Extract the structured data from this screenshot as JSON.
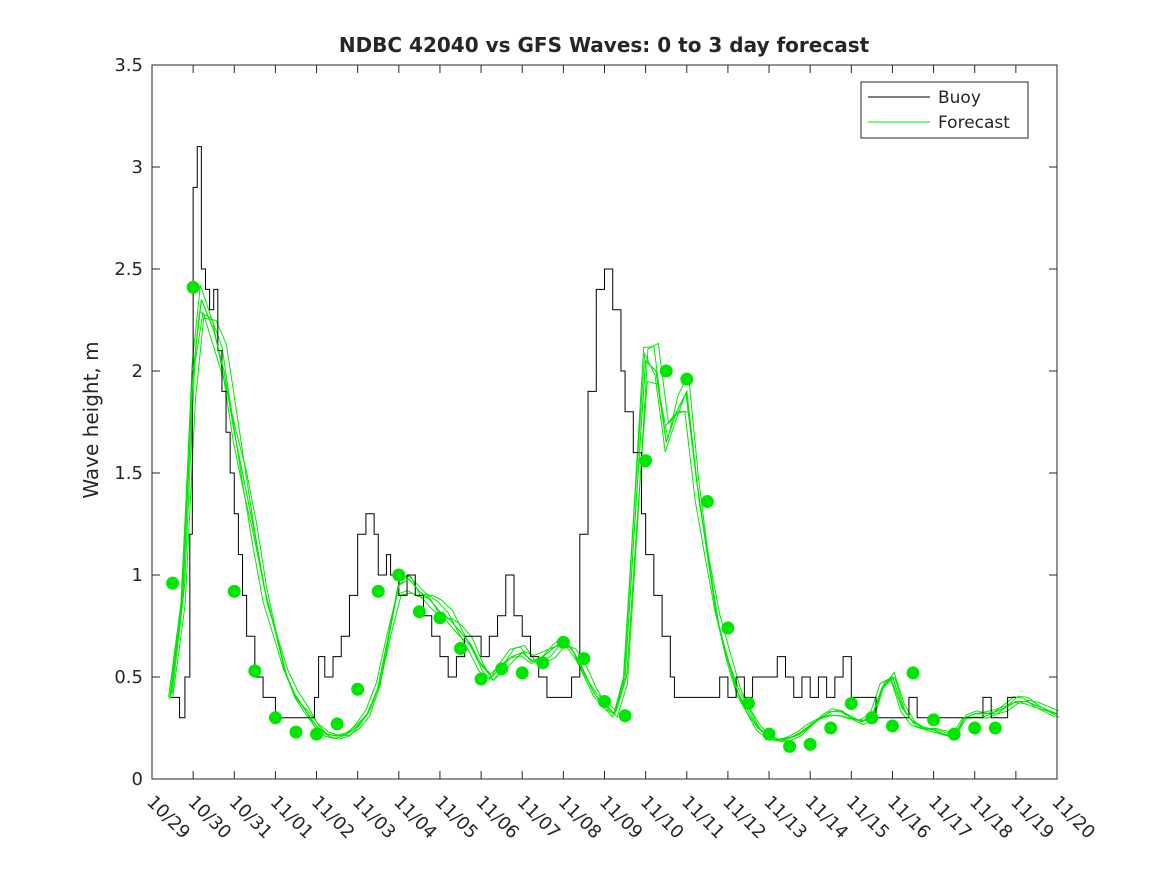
{
  "chart_data": {
    "type": "line",
    "title": "NDBC 42040 vs GFS Waves: 0 to 3 day forecast",
    "xlabel": "",
    "ylabel": "Wave height, m",
    "xlim": [
      0,
      22
    ],
    "ylim": [
      0,
      3.5
    ],
    "yticks": [
      0,
      0.5,
      1,
      1.5,
      2,
      2.5,
      3,
      3.5
    ],
    "ytick_labels": [
      "0",
      "0.5",
      "1",
      "1.5",
      "2",
      "2.5",
      "3",
      "3.5"
    ],
    "xticks": [
      0,
      1,
      2,
      3,
      4,
      5,
      6,
      7,
      8,
      9,
      10,
      11,
      12,
      13,
      14,
      15,
      16,
      17,
      18,
      19,
      20,
      21,
      22
    ],
    "xtick_labels": [
      "10/29",
      "10/30",
      "10/31",
      "11/01",
      "11/02",
      "11/03",
      "11/04",
      "11/05",
      "11/06",
      "11/07",
      "11/08",
      "11/09",
      "11/10",
      "11/11",
      "11/12",
      "11/13",
      "11/14",
      "11/15",
      "11/16",
      "11/17",
      "11/18",
      "11/19",
      "11/20"
    ],
    "legend": {
      "position": "top-right",
      "entries": [
        {
          "label": "Buoy",
          "color": "#000000"
        },
        {
          "label": "Forecast",
          "color": "#00e600"
        }
      ]
    },
    "series": [
      {
        "name": "Buoy",
        "color": "#000000",
        "x": [
          0.45,
          0.62,
          0.67,
          0.8,
          0.92,
          0.98,
          1.0,
          1.1,
          1.2,
          1.3,
          1.4,
          1.5,
          1.6,
          1.7,
          1.8,
          1.9,
          2.0,
          2.1,
          2.2,
          2.3,
          2.5,
          2.7,
          3.0,
          3.2,
          3.4,
          3.6,
          3.8,
          3.95,
          4.05,
          4.2,
          4.4,
          4.6,
          4.8,
          5.0,
          5.2,
          5.4,
          5.5,
          5.7,
          5.8,
          6.0,
          6.2,
          6.4,
          6.6,
          6.8,
          7.0,
          7.2,
          7.4,
          7.6,
          7.8,
          8.0,
          8.2,
          8.4,
          8.6,
          8.8,
          9.0,
          9.2,
          9.4,
          9.6,
          9.8,
          10.0,
          10.2,
          10.4,
          10.6,
          10.8,
          11.0,
          11.2,
          11.4,
          11.5,
          11.7,
          11.9,
          12.0,
          12.2,
          12.4,
          12.6,
          12.7,
          12.9,
          13.0,
          13.1,
          13.3,
          13.45,
          13.6,
          13.8,
          14.0,
          14.2,
          14.4,
          14.6,
          14.8,
          15.0,
          15.2,
          15.4,
          15.6,
          15.8,
          16.0,
          16.2,
          16.4,
          16.6,
          16.8,
          17.0,
          17.2,
          17.4,
          17.6,
          17.8,
          18.0,
          18.2,
          18.4,
          18.6,
          18.8,
          19.0,
          19.2,
          19.4,
          19.6,
          19.8,
          20.0,
          20.2,
          20.4,
          20.6,
          20.8,
          21.0
        ],
        "y": [
          0.4,
          0.4,
          0.3,
          0.5,
          1.2,
          2.0,
          2.9,
          3.1,
          2.5,
          2.4,
          2.3,
          2.4,
          2.1,
          1.9,
          1.7,
          1.5,
          1.3,
          1.1,
          0.9,
          0.7,
          0.5,
          0.4,
          0.3,
          0.3,
          0.3,
          0.3,
          0.3,
          0.4,
          0.6,
          0.5,
          0.6,
          0.7,
          0.9,
          1.2,
          1.3,
          1.2,
          1.0,
          1.1,
          1.0,
          0.9,
          1.0,
          0.9,
          0.8,
          0.7,
          0.6,
          0.5,
          0.6,
          0.7,
          0.7,
          0.6,
          0.7,
          0.8,
          1.0,
          0.8,
          0.7,
          0.6,
          0.5,
          0.4,
          0.4,
          0.4,
          0.5,
          1.2,
          1.9,
          2.4,
          2.5,
          2.3,
          2.0,
          1.8,
          1.6,
          1.3,
          1.1,
          0.9,
          0.7,
          0.5,
          0.4,
          0.4,
          0.4,
          0.4,
          0.4,
          0.4,
          0.4,
          0.5,
          0.4,
          0.5,
          0.4,
          0.5,
          0.5,
          0.5,
          0.6,
          0.5,
          0.4,
          0.5,
          0.4,
          0.5,
          0.4,
          0.5,
          0.6,
          0.4,
          0.4,
          0.4,
          0.3,
          0.3,
          0.3,
          0.3,
          0.4,
          0.3,
          0.3,
          0.3,
          0.3,
          0.3,
          0.3,
          0.3,
          0.3,
          0.4,
          0.3,
          0.3,
          0.4,
          0.4
        ]
      },
      {
        "name": "Forecast",
        "color": "#00e600",
        "x": [
          0.45,
          0.75,
          1.0,
          1.2,
          1.5,
          1.75,
          2.0,
          2.25,
          2.5,
          2.75,
          3.0,
          3.25,
          3.5,
          3.75,
          4.0,
          4.25,
          4.5,
          4.75,
          5.0,
          5.25,
          5.5,
          5.75,
          6.0,
          6.25,
          6.5,
          6.75,
          7.0,
          7.25,
          7.5,
          7.75,
          8.0,
          8.25,
          8.5,
          8.75,
          9.0,
          9.25,
          9.5,
          9.75,
          10.0,
          10.25,
          10.5,
          10.75,
          11.0,
          11.25,
          11.5,
          11.75,
          12.0,
          12.25,
          12.5,
          12.75,
          13.0,
          13.25,
          13.5,
          13.75,
          14.0,
          14.25,
          14.5,
          14.75,
          15.0,
          15.25,
          15.5,
          15.75,
          16.0,
          16.25,
          16.5,
          16.75,
          17.0,
          17.25,
          17.5,
          17.75,
          18.0,
          18.25,
          18.5,
          18.75,
          19.0,
          19.25,
          19.5,
          19.75,
          20.0,
          20.25,
          20.5,
          20.75,
          21.0,
          21.25,
          21.5,
          22.0
        ],
        "y": [
          0.4,
          0.9,
          2.0,
          2.35,
          2.2,
          2.0,
          1.7,
          1.45,
          1.2,
          0.92,
          0.72,
          0.52,
          0.4,
          0.33,
          0.26,
          0.22,
          0.21,
          0.22,
          0.26,
          0.32,
          0.45,
          0.7,
          0.95,
          0.98,
          0.92,
          0.88,
          0.82,
          0.78,
          0.72,
          0.66,
          0.56,
          0.5,
          0.55,
          0.6,
          0.62,
          0.58,
          0.6,
          0.64,
          0.68,
          0.62,
          0.52,
          0.42,
          0.36,
          0.32,
          0.5,
          1.3,
          2.05,
          2.0,
          1.65,
          1.8,
          1.9,
          1.45,
          1.1,
          0.78,
          0.58,
          0.42,
          0.33,
          0.25,
          0.21,
          0.19,
          0.2,
          0.22,
          0.26,
          0.3,
          0.33,
          0.33,
          0.3,
          0.28,
          0.3,
          0.45,
          0.5,
          0.35,
          0.28,
          0.25,
          0.24,
          0.22,
          0.21,
          0.3,
          0.32,
          0.32,
          0.33,
          0.35,
          0.38,
          0.38,
          0.36,
          0.32
        ]
      }
    ],
    "forecast_markers": {
      "x": [
        0.5,
        1.0,
        2.0,
        2.5,
        3.0,
        3.5,
        4.0,
        4.5,
        5.0,
        5.5,
        6.0,
        6.5,
        7.0,
        7.5,
        8.0,
        8.5,
        9.0,
        9.5,
        10.0,
        10.5,
        11.0,
        11.5,
        12.0,
        12.5,
        13.0,
        13.5,
        14.0,
        14.5,
        15.0,
        15.5,
        16.0,
        16.5,
        17.0,
        17.5,
        18.0,
        18.5,
        19.0,
        19.5,
        20.0,
        20.5
      ],
      "y": [
        0.96,
        2.41,
        0.92,
        0.53,
        0.3,
        0.23,
        0.22,
        0.27,
        0.44,
        0.92,
        1.0,
        0.82,
        0.79,
        0.64,
        0.49,
        0.54,
        0.52,
        0.57,
        0.67,
        0.59,
        0.38,
        0.31,
        1.56,
        2.0,
        1.96,
        1.36,
        0.74,
        0.37,
        0.22,
        0.16,
        0.17,
        0.25,
        0.37,
        0.3,
        0.26,
        0.52,
        0.29,
        0.22,
        0.25,
        0.25
      ]
    }
  }
}
